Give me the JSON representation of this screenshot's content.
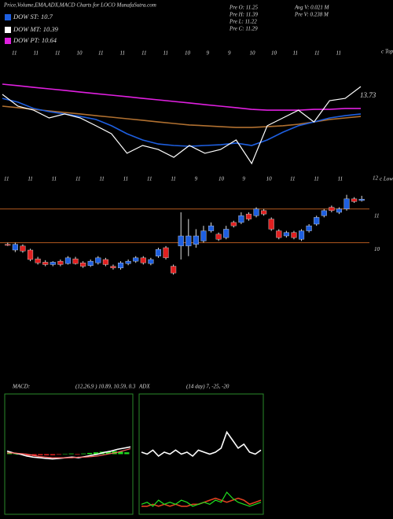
{
  "header": {
    "title": "Price,Volume,EMA,ADX,MACD Charts for LOCO MunafaSutra.com",
    "legend": [
      {
        "label": "DOW ST: 10.7",
        "color": "#1e5fe0"
      },
      {
        "label": "DOW MT: 10.39",
        "color": "#ffffff"
      },
      {
        "label": "DOW PT: 10.64",
        "color": "#e020e0"
      }
    ],
    "stats": [
      "Pre  O: 11.25",
      "Pre  H: 11.39",
      "Pre  L: 11.22",
      "Pre  C: 11.29",
      "Avg V: 0.021 M",
      "Pre  V: 0.238 M"
    ],
    "date_labels_top": [
      "11",
      "11",
      "11",
      "10",
      "11",
      "11",
      "11",
      "11",
      "10",
      "9",
      "9",
      "10",
      "10",
      "11",
      "11",
      "11"
    ],
    "date_labels_bottom": [
      "11",
      "11",
      "11",
      "11",
      "11",
      "11",
      "11",
      "11",
      "9",
      "10",
      "9",
      "10",
      "11",
      "11",
      "11"
    ],
    "tops_label": "c Tops",
    "lows_number": "12",
    "lows_label": "c Lows",
    "last_value": "13.73"
  },
  "chart_data": [
    {
      "type": "line",
      "ylim": [
        8.5,
        14.5
      ],
      "series": [
        {
          "color": "#e020e0",
          "values": [
            12.97,
            12.89,
            12.8,
            12.72,
            12.64,
            12.55,
            12.47,
            12.39,
            12.31,
            12.22,
            12.14,
            12.06,
            11.98,
            11.89,
            11.81,
            11.73,
            11.64,
            11.6,
            11.6,
            11.6,
            11.64,
            11.64,
            11.69,
            11.69
          ]
        },
        {
          "color": "#b07030",
          "values": [
            11.81,
            11.73,
            11.64,
            11.56,
            11.48,
            11.4,
            11.31,
            11.23,
            11.15,
            11.07,
            10.98,
            10.9,
            10.82,
            10.78,
            10.73,
            10.69,
            10.69,
            10.73,
            10.78,
            10.86,
            10.98,
            11.11,
            11.19,
            11.27
          ]
        },
        {
          "color": "#1e5fe0",
          "values": [
            12.22,
            12.02,
            11.69,
            11.52,
            11.4,
            11.27,
            11.11,
            10.78,
            10.36,
            10.03,
            9.82,
            9.74,
            9.7,
            9.74,
            9.78,
            9.87,
            9.74,
            10.03,
            10.44,
            10.78,
            10.98,
            11.19,
            11.31,
            11.4
          ]
        },
        {
          "color": "#ffffff",
          "values": [
            12.43,
            11.81,
            11.6,
            11.19,
            11.4,
            11.19,
            10.78,
            10.36,
            9.33,
            9.74,
            9.53,
            9.12,
            9.74,
            9.33,
            9.53,
            10.03,
            8.79,
            10.78,
            11.19,
            11.6,
            10.98,
            12.1,
            12.22,
            12.84
          ]
        }
      ]
    },
    {
      "type": "candlestick",
      "ylim": [
        8.8,
        11.6
      ],
      "yticks": [
        10,
        11
      ],
      "up_color": "#1e5fe0",
      "down_color": "#e02020",
      "open": [
        9.95,
        9.78,
        9.9,
        9.78,
        9.52,
        9.42,
        9.35,
        9.45,
        9.38,
        9.52,
        9.4,
        9.32,
        9.4,
        9.5,
        9.3,
        9.25,
        9.38,
        9.45,
        9.55,
        9.38,
        9.6,
        9.85,
        9.3,
        9.9,
        9.9,
        9.95,
        10.05,
        10.35,
        10.25,
        10.15,
        10.6,
        10.6,
        10.85,
        10.8,
        10.95,
        10.7,
        10.35,
        10.2,
        10.3,
        10.1,
        10.35,
        10.55,
        10.8,
        11.05,
        10.9,
        11.0,
        11.3,
        11.25
      ],
      "high": [
        10.0,
        10.0,
        9.95,
        9.82,
        9.58,
        9.48,
        9.45,
        9.5,
        9.6,
        9.58,
        9.45,
        9.5,
        9.6,
        9.55,
        9.35,
        9.45,
        9.5,
        9.6,
        9.6,
        9.55,
        9.85,
        9.9,
        9.35,
        10.9,
        10.7,
        10.4,
        10.5,
        10.6,
        10.3,
        10.5,
        10.65,
        10.9,
        10.9,
        11.05,
        11.0,
        10.75,
        10.4,
        10.35,
        10.35,
        10.4,
        10.55,
        10.8,
        11.0,
        11.1,
        11.05,
        11.42,
        11.35,
        11.39
      ],
      "low": [
        9.9,
        9.72,
        9.7,
        9.45,
        9.35,
        9.3,
        9.3,
        9.3,
        9.35,
        9.35,
        9.25,
        9.28,
        9.35,
        9.3,
        9.2,
        9.2,
        9.33,
        9.4,
        9.35,
        9.33,
        9.55,
        9.5,
        9.05,
        9.5,
        9.6,
        9.85,
        10.0,
        10.3,
        10.05,
        10.1,
        10.45,
        10.55,
        10.65,
        10.75,
        10.8,
        10.35,
        10.1,
        10.15,
        10.1,
        10.05,
        10.3,
        10.5,
        10.75,
        10.9,
        10.85,
        10.95,
        11.18,
        11.22
      ],
      "close": [
        9.92,
        9.95,
        9.75,
        9.5,
        9.4,
        9.35,
        9.42,
        9.35,
        9.55,
        9.38,
        9.3,
        9.45,
        9.55,
        9.35,
        9.25,
        9.4,
        9.45,
        9.55,
        9.4,
        9.5,
        9.8,
        9.55,
        9.1,
        10.2,
        10.2,
        10.2,
        10.35,
        10.5,
        10.1,
        10.4,
        10.5,
        10.8,
        10.7,
        11.0,
        10.85,
        10.4,
        10.15,
        10.3,
        10.15,
        10.35,
        10.5,
        10.75,
        10.95,
        10.95,
        11.0,
        11.3,
        11.22,
        11.29
      ]
    },
    {
      "type": "macd",
      "title": "MACD:",
      "subtitle": "(12,26,9 ) 10.89, 10.59, 0.3",
      "ylim": [
        -1,
        1
      ],
      "histogram": {
        "up_color": "#20e020",
        "down_color": "#e02020",
        "values": [
          0.03,
          0.0,
          -0.01,
          -0.03,
          -0.03,
          -0.02,
          -0.02,
          -0.02,
          -0.01,
          0.0,
          0.01,
          -0.01,
          0.01,
          0.02,
          0.03,
          0.04,
          0.04,
          0.05,
          0.04,
          0.03
        ]
      },
      "series": [
        {
          "color": "#ffffff",
          "values": [
            0.05,
            0.02,
            0.0,
            -0.03,
            -0.05,
            -0.06,
            -0.07,
            -0.08,
            -0.07,
            -0.06,
            -0.05,
            -0.06,
            -0.04,
            -0.02,
            0.0,
            0.03,
            0.05,
            0.08,
            0.1,
            0.12
          ]
        },
        {
          "color": "#ff6060",
          "values": [
            0.02,
            0.02,
            0.01,
            0.0,
            -0.02,
            -0.04,
            -0.05,
            -0.06,
            -0.06,
            -0.06,
            -0.06,
            -0.05,
            -0.05,
            -0.04,
            -0.03,
            -0.01,
            0.01,
            0.03,
            0.06,
            0.09
          ]
        }
      ]
    },
    {
      "type": "line",
      "title": "ADX",
      "subtitle": "(14 day) 7, -25, -20",
      "ylim": [
        0,
        60
      ],
      "series": [
        {
          "color": "#ffffff",
          "values": [
            31,
            30,
            32,
            29,
            31,
            30,
            32,
            30,
            31,
            29,
            32,
            31,
            30,
            31,
            33,
            41,
            37,
            33,
            35,
            31,
            30,
            32
          ]
        },
        {
          "color": "#e04020",
          "values": [
            4,
            4,
            5,
            4,
            5,
            4,
            5,
            4,
            4,
            5,
            5,
            6,
            7,
            8,
            7,
            6,
            7,
            8,
            7,
            5,
            6,
            7
          ]
        },
        {
          "color": "#20e020",
          "values": [
            5,
            6,
            4,
            7,
            5,
            6,
            5,
            7,
            6,
            4,
            5,
            6,
            5,
            7,
            6,
            11,
            8,
            6,
            5,
            4,
            5,
            6
          ]
        }
      ]
    }
  ]
}
